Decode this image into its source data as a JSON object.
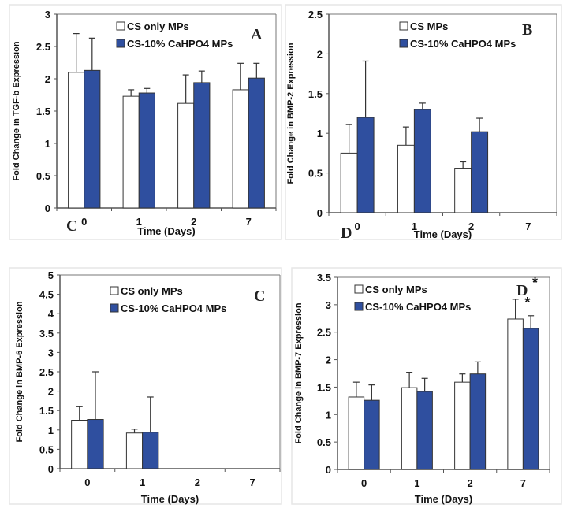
{
  "colors": {
    "series1": "#ffffff",
    "series2": "#2f4f9f",
    "axis": "#555555",
    "frame": "#e6e6e6"
  },
  "chart_data": [
    {
      "type": "bar",
      "panel_label": "A",
      "categories": [
        "0",
        "1",
        "2",
        "7"
      ],
      "xlabel": "Time (Days)",
      "ylabel": "Fold Change in TGF-b Expression",
      "ylim": [
        0,
        3
      ],
      "yticks": [
        "0",
        "0.5",
        "1",
        "1.5",
        "2",
        "2.5",
        "3"
      ],
      "ystep": 0.5,
      "series": [
        {
          "name": "CS only MPs",
          "values": [
            2.1,
            1.73,
            1.62,
            1.83
          ],
          "errors": [
            0.6,
            0.1,
            0.44,
            0.41
          ]
        },
        {
          "name": "CS-10% CaHPO4 MPs",
          "values": [
            2.13,
            1.78,
            1.94,
            2.01
          ],
          "errors": [
            0.5,
            0.07,
            0.18,
            0.23
          ]
        }
      ],
      "annotations": [
        {
          "text": "C",
          "kind": "stray-letter"
        }
      ],
      "grid": false,
      "legend": "top"
    },
    {
      "type": "bar",
      "panel_label": "B",
      "categories": [
        "0",
        "1",
        "2",
        "7"
      ],
      "xlabel": "Time (Days)",
      "ylabel": "Fold Change in BMP-2 Expression",
      "ylim": [
        0,
        2.5
      ],
      "yticks": [
        "0",
        "0.5",
        "1",
        "1.5",
        "2",
        "2.5"
      ],
      "ystep": 0.5,
      "series": [
        {
          "name": "CS MPs",
          "values": [
            0.75,
            0.85,
            0.56,
            0
          ],
          "errors": [
            0.36,
            0.23,
            0.08,
            0
          ]
        },
        {
          "name": "CS-10%  CaHPO4 MPs",
          "values": [
            1.2,
            1.3,
            1.02,
            0
          ],
          "errors": [
            0.71,
            0.08,
            0.17,
            0
          ]
        }
      ],
      "annotations": [
        {
          "text": "D",
          "kind": "stray-letter"
        }
      ],
      "grid": false,
      "legend": "top"
    },
    {
      "type": "bar",
      "panel_label": "C",
      "categories": [
        "0",
        "1",
        "2",
        "7"
      ],
      "xlabel": "Time (Days)",
      "ylabel": "Fold Change in BMP-6 Expression",
      "ylim": [
        0,
        5
      ],
      "yticks": [
        "0",
        "0.5",
        "1",
        "1.5",
        "2",
        "2.5",
        "3",
        "3.5",
        "4",
        "4.5",
        "5"
      ],
      "ystep": 0.5,
      "series": [
        {
          "name": "CS only MPs",
          "values": [
            1.25,
            0.92,
            0,
            0
          ],
          "errors": [
            0.35,
            0.1,
            0,
            0
          ]
        },
        {
          "name": "CS-10% CaHPO4 MPs",
          "values": [
            1.27,
            0.94,
            0,
            0
          ],
          "errors": [
            1.23,
            0.91,
            0,
            0
          ]
        }
      ],
      "annotations": [],
      "grid": false,
      "legend": "top"
    },
    {
      "type": "bar",
      "panel_label": "D",
      "categories": [
        "0",
        "1",
        "2",
        "7"
      ],
      "xlabel": "Time (Days)",
      "ylabel": "Fold Change in BMP-7 Expression",
      "ylim": [
        0,
        3.5
      ],
      "yticks": [
        "0",
        "0.5",
        "1",
        "1.5",
        "2",
        "2.5",
        "3",
        "3.5"
      ],
      "ystep": 0.5,
      "series": [
        {
          "name": "CS only MPs",
          "values": [
            1.32,
            1.49,
            1.59,
            2.74
          ],
          "errors": [
            0.27,
            0.28,
            0.15,
            0.36
          ]
        },
        {
          "name": "CS-10% CaHPO4 MPs",
          "values": [
            1.26,
            1.42,
            1.74,
            2.57
          ],
          "errors": [
            0.28,
            0.24,
            0.22,
            0.23
          ]
        }
      ],
      "annotations": [
        {
          "text": "*",
          "kind": "significance",
          "category": "7",
          "series": 0
        },
        {
          "text": "*",
          "kind": "panel-superscript"
        }
      ],
      "grid": false,
      "legend": "top"
    }
  ]
}
